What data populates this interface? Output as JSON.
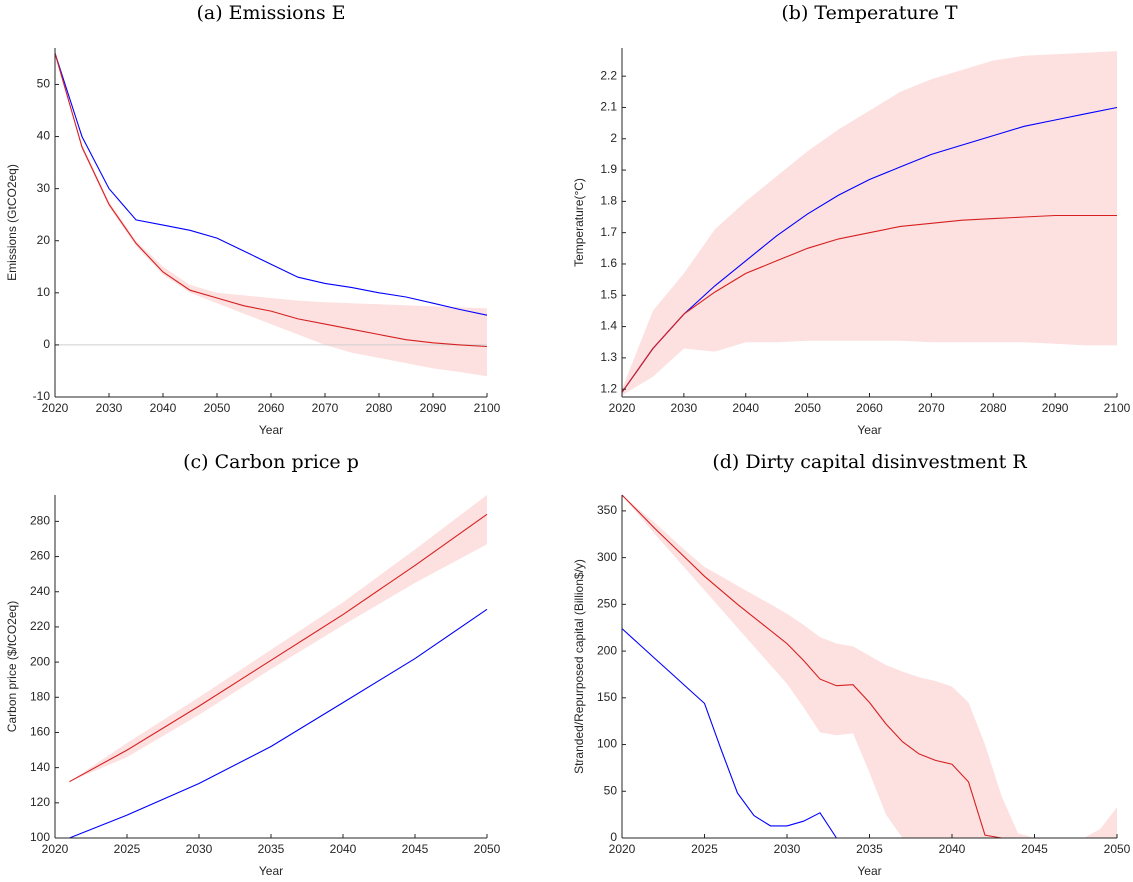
{
  "chart_data": [
    {
      "type": "line",
      "title": "(a) Emissions E",
      "xlabel": "Year",
      "ylabel": "Emissions (GtCO2eq)",
      "x": [
        2020,
        2025,
        2030,
        2035,
        2040,
        2045,
        2050,
        2055,
        2060,
        2065,
        2070,
        2075,
        2080,
        2085,
        2090,
        2095,
        2100
      ],
      "series": [
        {
          "color": "#0000ff",
          "values": [
            56,
            40,
            30,
            24,
            23,
            22,
            20.5,
            18,
            15.5,
            13,
            11.8,
            11,
            10,
            9.2,
            8,
            6.8,
            5.7
          ]
        },
        {
          "color": "#d62020",
          "values": [
            56,
            38,
            27,
            19.5,
            14,
            10.5,
            9,
            7.5,
            6.5,
            5,
            4,
            3,
            2,
            1,
            0.4,
            0,
            -0.3
          ]
        }
      ],
      "band": {
        "color": "#fde0e0",
        "lower": [
          56,
          37.5,
          26.5,
          19,
          13.5,
          10,
          8,
          6,
          4,
          2,
          0,
          -1.5,
          -2.5,
          -3.5,
          -4.5,
          -5.2,
          -6
        ],
        "upper": [
          56,
          38.5,
          27.5,
          20,
          15,
          11.5,
          10,
          9.5,
          9,
          8.5,
          8.2,
          8,
          7.8,
          7.6,
          7.4,
          7.2,
          7
        ]
      },
      "xlim": [
        2020,
        2100
      ],
      "xticks": [
        2020,
        2030,
        2040,
        2050,
        2060,
        2070,
        2080,
        2090,
        2100
      ],
      "ylim": [
        -10,
        57
      ],
      "yticks": [
        -10,
        0,
        10,
        20,
        30,
        40,
        50
      ]
    },
    {
      "type": "line",
      "title": "(b) Temperature T",
      "xlabel": "Year",
      "ylabel": "Temperature(°C)",
      "x": [
        2020,
        2025,
        2030,
        2035,
        2040,
        2045,
        2050,
        2055,
        2060,
        2065,
        2070,
        2075,
        2080,
        2085,
        2090,
        2095,
        2100
      ],
      "series": [
        {
          "color": "#0000ff",
          "values": [
            1.19,
            1.33,
            1.44,
            1.53,
            1.61,
            1.69,
            1.76,
            1.82,
            1.87,
            1.91,
            1.95,
            1.98,
            2.01,
            2.04,
            2.06,
            2.08,
            2.1
          ]
        },
        {
          "color": "#d62020",
          "values": [
            1.19,
            1.33,
            1.44,
            1.51,
            1.57,
            1.61,
            1.65,
            1.68,
            1.7,
            1.72,
            1.73,
            1.74,
            1.745,
            1.75,
            1.755,
            1.755,
            1.755
          ]
        }
      ],
      "band": {
        "color": "#fde0e0",
        "lower": [
          1.18,
          1.24,
          1.33,
          1.32,
          1.35,
          1.35,
          1.355,
          1.355,
          1.355,
          1.355,
          1.35,
          1.35,
          1.35,
          1.35,
          1.345,
          1.34,
          1.34
        ],
        "upper": [
          1.2,
          1.45,
          1.57,
          1.71,
          1.8,
          1.88,
          1.96,
          2.03,
          2.09,
          2.15,
          2.19,
          2.22,
          2.25,
          2.265,
          2.27,
          2.275,
          2.28
        ]
      },
      "xlim": [
        2020,
        2100
      ],
      "xticks": [
        2020,
        2030,
        2040,
        2050,
        2060,
        2070,
        2080,
        2090,
        2100
      ],
      "ylim": [
        1.175,
        2.29
      ],
      "yticks": [
        1.2,
        1.3,
        1.4,
        1.5,
        1.6,
        1.7,
        1.8,
        1.9,
        2,
        2.1,
        2.2
      ]
    },
    {
      "type": "line",
      "title": "(c) Carbon price p",
      "xlabel": "Year",
      "ylabel": "Carbon price ($/tCO2eq)",
      "x": [
        2021,
        2025,
        2030,
        2035,
        2040,
        2045,
        2050
      ],
      "series": [
        {
          "color": "#0000ff",
          "values": [
            100,
            113,
            131,
            152,
            177,
            202,
            230
          ]
        },
        {
          "color": "#d62020",
          "values": [
            132,
            150,
            175,
            201,
            227,
            255,
            284
          ]
        }
      ],
      "band": {
        "color": "#fde0e0",
        "lower": [
          132,
          146,
          170,
          196,
          221,
          245,
          267
        ],
        "upper": [
          132,
          154,
          180,
          207,
          234,
          264,
          295
        ]
      },
      "xlim": [
        2020,
        2050
      ],
      "xticks": [
        2020,
        2025,
        2030,
        2035,
        2040,
        2045,
        2050
      ],
      "ylim": [
        100,
        295
      ],
      "yticks": [
        100,
        120,
        140,
        160,
        180,
        200,
        220,
        240,
        260,
        280
      ]
    },
    {
      "type": "line",
      "title": "(d) Dirty capital disinvestment R",
      "xlabel": "Year",
      "ylabel": "Stranded/Repurposed capital (Billion$/y)",
      "x": [
        2020,
        2021,
        2022,
        2023,
        2024,
        2025,
        2026,
        2027,
        2028,
        2029,
        2030,
        2031,
        2032,
        2033,
        2034,
        2035,
        2036,
        2037,
        2038,
        2039,
        2040,
        2041,
        2042,
        2043,
        2044,
        2045,
        2046,
        2047,
        2048,
        2049,
        2050
      ],
      "series": [
        {
          "color": "#0000ff",
          "values": [
            224,
            208,
            192,
            176,
            160,
            144,
            95,
            48,
            24,
            13,
            13,
            18,
            27,
            0,
            0,
            0,
            0,
            0,
            0,
            0,
            0,
            0,
            0,
            0,
            0,
            0,
            0,
            0,
            0,
            0,
            0
          ]
        },
        {
          "color": "#d62020",
          "values": [
            367,
            349,
            331,
            314,
            297,
            280,
            265,
            250,
            236,
            222,
            208,
            190,
            170,
            163,
            164,
            145,
            122,
            103,
            90,
            83,
            79,
            60,
            3,
            0,
            0,
            0,
            0,
            0,
            0,
            0,
            0
          ]
        }
      ],
      "band": {
        "color": "#fde0e0",
        "lower": [
          367,
          346,
          325,
          305,
          285,
          265,
          245,
          225,
          205,
          185,
          165,
          140,
          113,
          110,
          112,
          70,
          25,
          0,
          0,
          0,
          0,
          0,
          0,
          0,
          0,
          0,
          0,
          0,
          0,
          0,
          0
        ],
        "upper": [
          367,
          352,
          337,
          321,
          305,
          290,
          280,
          270,
          260,
          250,
          240,
          228,
          215,
          208,
          205,
          195,
          185,
          178,
          172,
          168,
          162,
          145,
          100,
          45,
          5,
          0,
          0,
          0,
          0,
          10,
          33
        ]
      },
      "xlim": [
        2020,
        2050
      ],
      "xticks": [
        2020,
        2025,
        2030,
        2035,
        2040,
        2045,
        2050
      ],
      "ylim": [
        0,
        367
      ],
      "yticks": [
        0,
        50,
        100,
        150,
        200,
        250,
        300,
        350
      ]
    }
  ]
}
